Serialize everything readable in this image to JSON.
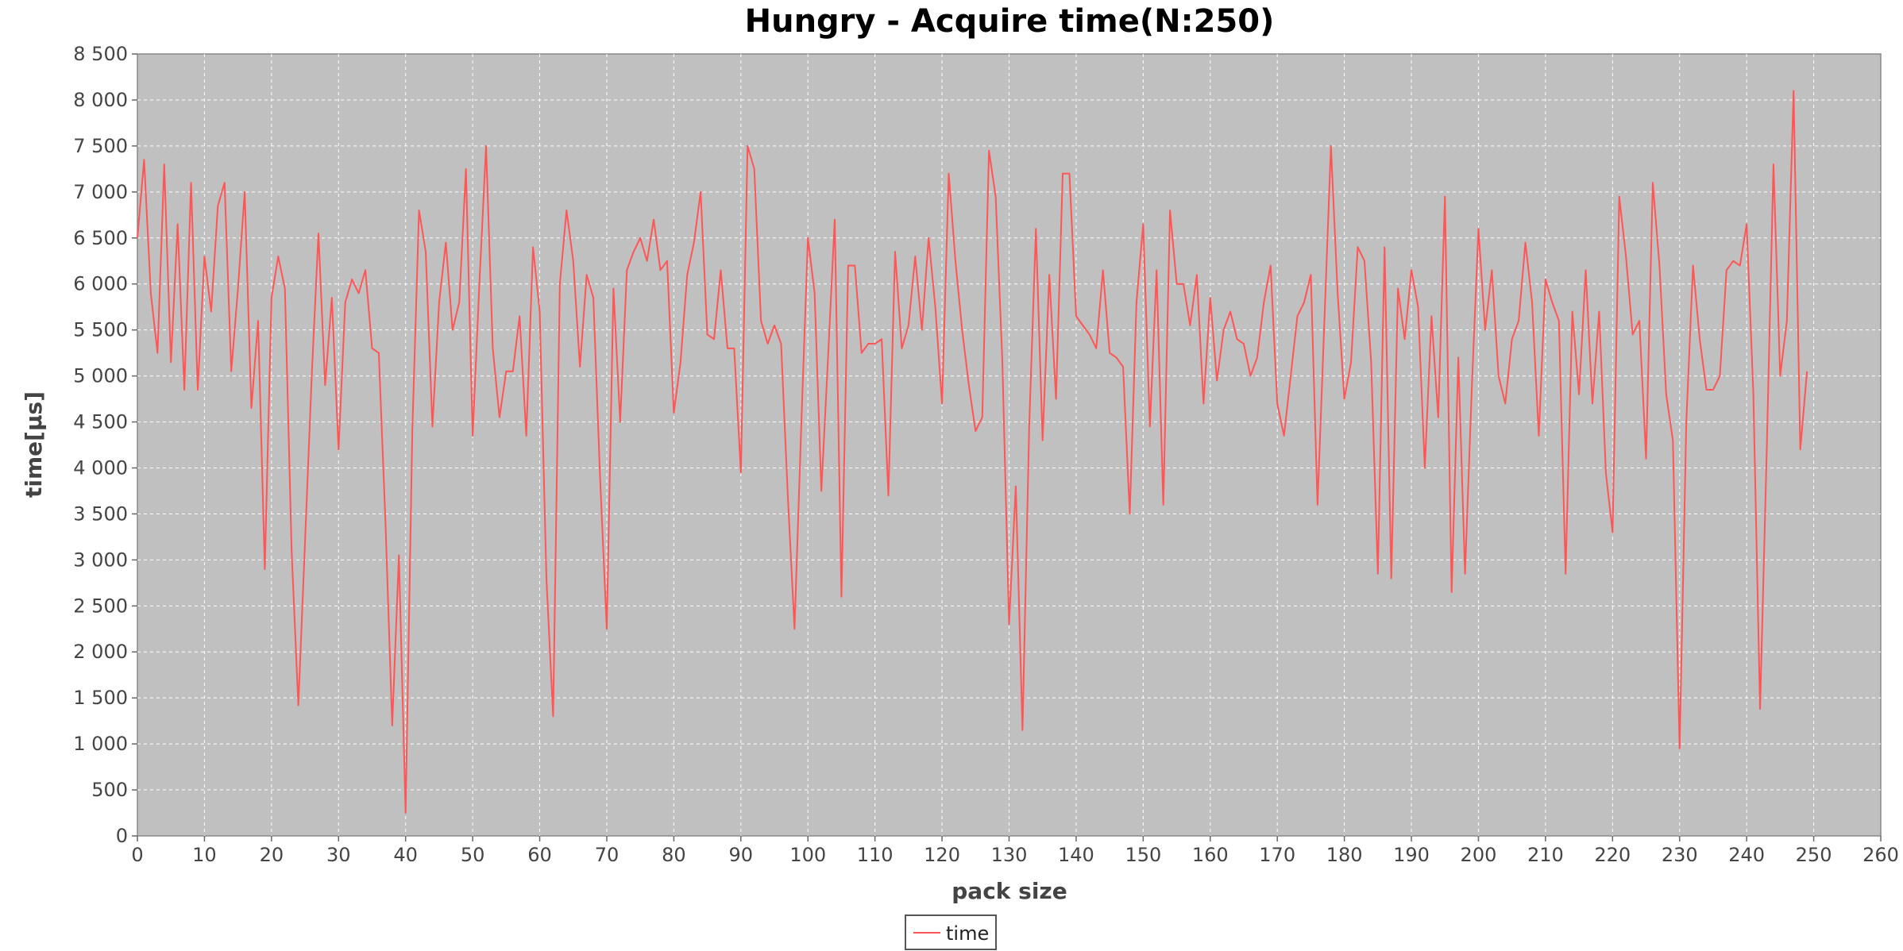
{
  "chart_data": {
    "type": "line",
    "title": "Hungry - Acquire time(N:250)",
    "xlabel": "pack size",
    "ylabel": "time[µs]",
    "xlim": [
      0,
      260
    ],
    "ylim": [
      0,
      8500
    ],
    "x_ticks": [
      0,
      10,
      20,
      30,
      40,
      50,
      60,
      70,
      80,
      90,
      100,
      110,
      120,
      130,
      140,
      150,
      160,
      170,
      180,
      190,
      200,
      210,
      220,
      230,
      240,
      250,
      260
    ],
    "y_ticks": [
      0,
      500,
      1000,
      1500,
      2000,
      2500,
      3000,
      3500,
      4000,
      4500,
      5000,
      5500,
      6000,
      6500,
      7000,
      7500,
      8000,
      8500
    ],
    "y_tick_labels": [
      "0",
      "500",
      "1 000",
      "1 500",
      "2 000",
      "2 500",
      "3 000",
      "3 500",
      "4 000",
      "4 500",
      "5 000",
      "5 500",
      "6 000",
      "6 500",
      "7 000",
      "7 500",
      "8 000",
      "8 500"
    ],
    "grid": true,
    "background": "#c0c0c0",
    "legend_position": "bottom",
    "series": [
      {
        "name": "time",
        "color": "#ff5555",
        "x": [
          0,
          1,
          2,
          3,
          4,
          5,
          6,
          7,
          8,
          9,
          10,
          11,
          12,
          13,
          14,
          15,
          16,
          17,
          18,
          19,
          20,
          21,
          22,
          23,
          24,
          25,
          26,
          27,
          28,
          29,
          30,
          31,
          32,
          33,
          34,
          35,
          36,
          37,
          38,
          39,
          40,
          41,
          42,
          43,
          44,
          45,
          46,
          47,
          48,
          49,
          50,
          51,
          52,
          53,
          54,
          55,
          56,
          57,
          58,
          59,
          60,
          61,
          62,
          63,
          64,
          65,
          66,
          67,
          68,
          69,
          70,
          71,
          72,
          73,
          74,
          75,
          76,
          77,
          78,
          79,
          80,
          81,
          82,
          83,
          84,
          85,
          86,
          87,
          88,
          89,
          90,
          91,
          92,
          93,
          94,
          95,
          96,
          97,
          98,
          99,
          100,
          101,
          102,
          103,
          104,
          105,
          106,
          107,
          108,
          109,
          110,
          111,
          112,
          113,
          114,
          115,
          116,
          117,
          118,
          119,
          120,
          121,
          122,
          123,
          124,
          125,
          126,
          127,
          128,
          129,
          130,
          131,
          132,
          133,
          134,
          135,
          136,
          137,
          138,
          139,
          140,
          141,
          142,
          143,
          144,
          145,
          146,
          147,
          148,
          149,
          150,
          151,
          152,
          153,
          154,
          155,
          156,
          157,
          158,
          159,
          160,
          161,
          162,
          163,
          164,
          165,
          166,
          167,
          168,
          169,
          170,
          171,
          172,
          173,
          174,
          175,
          176,
          177,
          178,
          179,
          180,
          181,
          182,
          183,
          184,
          185,
          186,
          187,
          188,
          189,
          190,
          191,
          192,
          193,
          194,
          195,
          196,
          197,
          198,
          199,
          200,
          201,
          202,
          203,
          204,
          205,
          206,
          207,
          208,
          209,
          210,
          211,
          212,
          213,
          214,
          215,
          216,
          217,
          218,
          219,
          220,
          221,
          222,
          223,
          224,
          225,
          226,
          227,
          228,
          229,
          230,
          231,
          232,
          233,
          234,
          235,
          236,
          237,
          238,
          239,
          240,
          241,
          242,
          243,
          244,
          245,
          246,
          247,
          248,
          249
        ],
        "values": [
          6500,
          7350,
          5900,
          5250,
          7300,
          5150,
          6650,
          4850,
          7100,
          4850,
          6300,
          5700,
          6850,
          7100,
          5050,
          5950,
          7000,
          4650,
          5600,
          2900,
          5850,
          6300,
          5950,
          3100,
          1420,
          3200,
          5000,
          6550,
          4900,
          5850,
          4200,
          5800,
          6050,
          5900,
          6150,
          5300,
          5250,
          3400,
          1200,
          3050,
          250,
          4400,
          6800,
          6350,
          4450,
          5800,
          6450,
          5500,
          5800,
          7250,
          4350,
          6000,
          7500,
          5300,
          4550,
          5050,
          5050,
          5650,
          4350,
          6400,
          5700,
          2800,
          1300,
          6000,
          6800,
          6250,
          5100,
          6100,
          5850,
          3900,
          2250,
          5950,
          4500,
          6150,
          6350,
          6500,
          6250,
          6700,
          6150,
          6250,
          4600,
          5150,
          6100,
          6450,
          7000,
          5450,
          5400,
          6150,
          5300,
          5300,
          3950,
          7500,
          7250,
          5600,
          5350,
          5550,
          5350,
          3700,
          2250,
          4450,
          6500,
          5900,
          3750,
          5200,
          6700,
          2600,
          6200,
          6200,
          5250,
          5350,
          5350,
          5400,
          3700,
          6350,
          5300,
          5550,
          6300,
          5500,
          6500,
          5750,
          4700,
          7200,
          6250,
          5500,
          4900,
          4400,
          4550,
          7450,
          6950,
          5150,
          2300,
          3800,
          1150,
          4450,
          6600,
          4300,
          6100,
          4750,
          7200,
          7200,
          5650,
          5550,
          5450,
          5300,
          6150,
          5250,
          5200,
          5100,
          3500,
          5800,
          6650,
          4450,
          6150,
          3600,
          6800,
          6000,
          6000,
          5550,
          6100,
          4700,
          5850,
          4950,
          5500,
          5700,
          5400,
          5350,
          5000,
          5200,
          5800,
          6200,
          4700,
          4350,
          5000,
          5650,
          5800,
          6100,
          3600,
          5550,
          7500,
          5900,
          4750,
          5150,
          6400,
          6250,
          5150,
          2850,
          6400,
          2800,
          5950,
          5400,
          6150,
          5750,
          4000,
          5650,
          4550,
          6950,
          2650,
          5200,
          2850,
          4850,
          6600,
          5500,
          6150,
          5000,
          4700,
          5400,
          5600,
          6450,
          5800,
          4350,
          6050,
          5800,
          5600,
          2850,
          5700,
          4800,
          6150,
          4700,
          5700,
          3950,
          3300,
          6950,
          6300,
          5450,
          5600,
          4100,
          7100,
          6200,
          4800,
          4300,
          950,
          4500,
          6200,
          5400,
          4850,
          4850,
          5000,
          6150,
          6250,
          6200,
          6650,
          4800,
          1380,
          4200,
          7300,
          5000,
          5600,
          8100,
          4200,
          5050
        ]
      }
    ]
  }
}
